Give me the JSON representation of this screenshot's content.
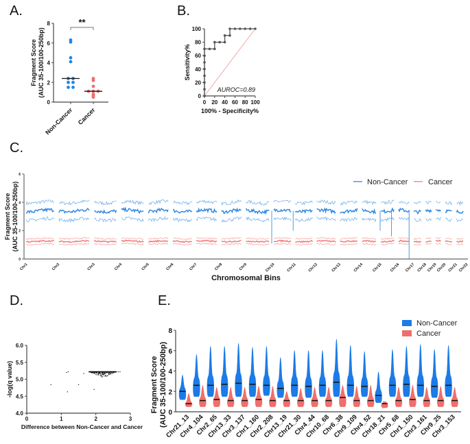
{
  "panels": {
    "A": "A.",
    "B": "B.",
    "C": "C.",
    "D": "D.",
    "E": "E."
  },
  "chart_data": [
    {
      "id": "A",
      "type": "scatter",
      "title": "",
      "ylabel": "Fragment Score\n(AUC 35-100/100-250bp)",
      "ylabel_line1": "Fragment Score",
      "ylabel_line2": "(AUC 35-100/100-250bp)",
      "categories": [
        "Non-Cancer",
        "Cancer"
      ],
      "ylim": [
        0,
        8
      ],
      "yticks": [
        "0",
        "2",
        "4",
        "6",
        "8"
      ],
      "significance": "**",
      "colors": {
        "Non-Cancer": "#1e88e5",
        "Cancer": "#ef6f6c"
      },
      "series": [
        {
          "name": "Non-Cancer",
          "values": [
            6.3,
            6.1,
            4.5,
            4.1,
            2.4,
            2.4,
            2.0,
            2.0,
            1.5,
            1.5
          ],
          "median": 2.4
        },
        {
          "name": "Cancer",
          "values": [
            2.4,
            2.2,
            1.6,
            1.1,
            1.1,
            1.1,
            0.8,
            0.7,
            0.6,
            0.5
          ],
          "median": 1.1
        }
      ]
    },
    {
      "id": "B",
      "type": "line",
      "xlabel": "100% - Specificity%",
      "ylabel": "Sensitivity%",
      "xlim": [
        0,
        100
      ],
      "ylim": [
        0,
        100
      ],
      "xticks": [
        "0",
        "20",
        "40",
        "60",
        "80",
        "100"
      ],
      "yticks": [
        "0",
        "20",
        "40",
        "60",
        "80",
        "100"
      ],
      "annotation": "AUROC=0.89",
      "x": [
        0,
        0,
        0,
        0,
        0,
        0,
        0,
        0,
        10,
        20,
        20,
        30,
        40,
        40,
        50,
        50,
        60,
        70,
        80,
        90,
        100
      ],
      "y": [
        0,
        10,
        20,
        30,
        40,
        50,
        60,
        70,
        70,
        70,
        80,
        80,
        80,
        90,
        90,
        100,
        100,
        100,
        100,
        100,
        100
      ],
      "reference_line": [
        [
          0,
          0
        ],
        [
          100,
          100
        ]
      ],
      "colors": {
        "roc": "#555555",
        "reference": "#f4a6a6"
      }
    },
    {
      "id": "C",
      "type": "line",
      "xlabel": "Chromosomal Bins",
      "ylabel_line1": "Fragment Score",
      "ylabel_line2": "(AUC 35-100/100-250bp)",
      "ylim": [
        0,
        6
      ],
      "yticks": [
        "0",
        "2",
        "4",
        "6"
      ],
      "xtick_labels": [
        "Chr1",
        "Chr2",
        "Chr3",
        "Chr4",
        "Chr5",
        "Chr6",
        "Chr7",
        "Chr8",
        "Chr9",
        "Chr10",
        "Chr11",
        "Chr12",
        "Chr13",
        "Chr14",
        "Chr15",
        "Chr16",
        "Chr17",
        "Chr18",
        "Chr19",
        "Chr20",
        "Chr21",
        "Chr22"
      ],
      "legend": [
        "Non-Cancer",
        "Cancer"
      ],
      "legend_position": "top-right",
      "series": [
        {
          "name": "Non-Cancer",
          "mean": 3.4,
          "upper": 4.0,
          "lower": 2.8,
          "color": "#1e7fe0"
        },
        {
          "name": "Cancer",
          "mean": 1.25,
          "upper": 1.45,
          "lower": 1.05,
          "color": "#ef6f6c"
        }
      ]
    },
    {
      "id": "D",
      "type": "scatter",
      "xlabel": "Difference between Non-Cancer and Cancer",
      "ylabel": "-log(q value)",
      "xlim": [
        0,
        3
      ],
      "ylim": [
        4.0,
        6.0
      ],
      "xticks": [
        "0",
        "1",
        "2",
        "3"
      ],
      "yticks": [
        "4.0",
        "4.5",
        "5.0",
        "5.5",
        "6.0"
      ],
      "outliers": [
        [
          0.7,
          4.84
        ],
        [
          1.15,
          5.2
        ],
        [
          1.2,
          5.22
        ],
        [
          1.18,
          4.63
        ],
        [
          1.5,
          4.84
        ],
        [
          1.65,
          5.17
        ],
        [
          1.95,
          4.7
        ],
        [
          2.65,
          5.22
        ],
        [
          2.7,
          5.22
        ]
      ],
      "cluster": {
        "x_range": [
          1.8,
          2.6
        ],
        "y_max": 5.22,
        "y_min": 5.0
      }
    },
    {
      "id": "E",
      "type": "violin",
      "ylabel_line1": "Fragment Score",
      "ylabel_line2": "(AUC 35-100/100-250bp)",
      "ylim": [
        0,
        8
      ],
      "yticks": [
        "0",
        "2",
        "4",
        "6",
        "8"
      ],
      "legend": [
        "Non-Cancer",
        "Cancer"
      ],
      "legend_position": "top-right",
      "colors": {
        "Non-Cancer": "#1c7be6",
        "Cancer": "#ef6f6c"
      },
      "categories": [
        "Chr21_13",
        "Chr4_104",
        "Chr2_65",
        "Chr13_33",
        "Chr3_137",
        "Chr1_160",
        "Chr2_208",
        "Chr13_19",
        "Chr21_30",
        "Chr4_44",
        "Chr10_68",
        "Chr6_38",
        "Chr9_109",
        "Chr4_52",
        "Chr18_21",
        "Chr5_68",
        "Chr1_150",
        "Chr3_161",
        "Chr9_25",
        "Chr3_153"
      ],
      "series": [
        {
          "name": "Non-Cancer",
          "max": [
            3.6,
            5.6,
            6.4,
            6.4,
            6.7,
            6.3,
            6.4,
            5.3,
            6.0,
            6.0,
            6.0,
            7.1,
            6.5,
            5.9,
            3.9,
            6.1,
            6.4,
            6.6,
            6.1,
            6.5
          ],
          "median": [
            2.0,
            2.6,
            2.6,
            2.7,
            2.8,
            2.7,
            2.6,
            2.3,
            2.6,
            2.5,
            2.6,
            2.9,
            2.6,
            2.5,
            1.6,
            2.6,
            2.7,
            2.6,
            2.5,
            2.6
          ],
          "min": [
            1.2,
            1.5,
            1.5,
            1.5,
            1.5,
            1.5,
            1.6,
            1.4,
            1.5,
            1.4,
            1.5,
            1.5,
            1.5,
            1.5,
            0.9,
            1.5,
            1.5,
            1.5,
            1.4,
            1.5
          ]
        },
        {
          "name": "Cancer",
          "max": [
            1.8,
            2.6,
            2.4,
            2.4,
            2.4,
            2.5,
            2.5,
            2.0,
            2.3,
            2.4,
            2.4,
            2.6,
            2.5,
            2.6,
            1.0,
            2.4,
            2.6,
            2.4,
            2.5,
            2.4
          ],
          "median": [
            0.8,
            1.1,
            1.2,
            1.1,
            1.1,
            1.2,
            1.1,
            1.1,
            1.1,
            1.1,
            1.1,
            1.4,
            1.1,
            1.1,
            0.8,
            1.1,
            1.2,
            1.1,
            1.1,
            1.1
          ],
          "min": [
            0.5,
            0.5,
            0.5,
            0.5,
            0.5,
            0.5,
            0.5,
            0.5,
            0.5,
            0.5,
            0.5,
            0.5,
            0.5,
            0.5,
            0.4,
            0.5,
            0.5,
            0.5,
            0.5,
            0.5
          ]
        }
      ]
    }
  ]
}
